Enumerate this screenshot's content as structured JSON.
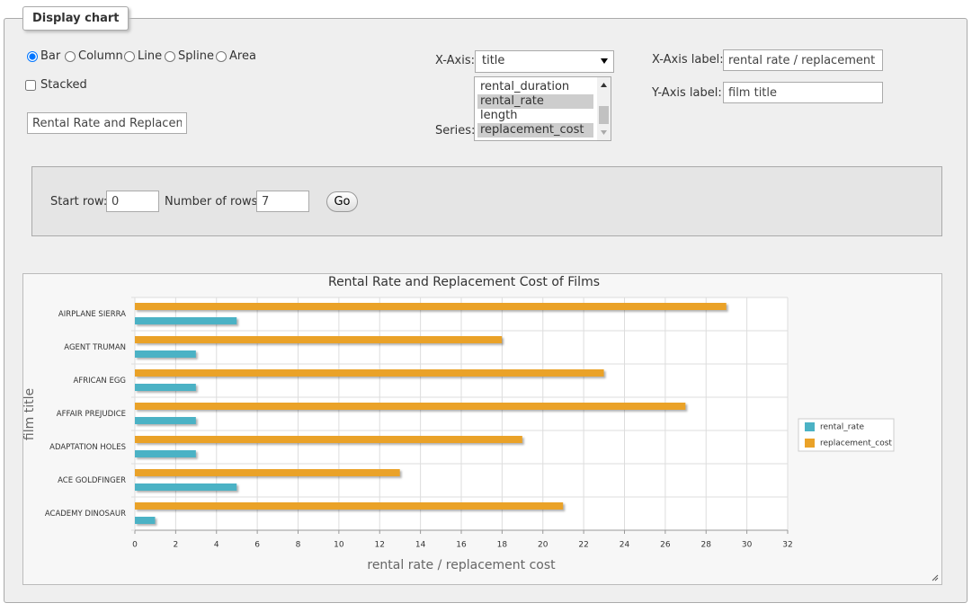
{
  "legend": "Display chart",
  "chart_types": [
    {
      "label": "Bar",
      "checked": true
    },
    {
      "label": "Column",
      "checked": false
    },
    {
      "label": "Line",
      "checked": false
    },
    {
      "label": "Spline",
      "checked": false
    },
    {
      "label": "Area",
      "checked": false
    }
  ],
  "stacked": {
    "label": "Stacked",
    "checked": false
  },
  "title_input": "Rental Rate and Replacement Cost of Films",
  "x_axis": {
    "label": "X-Axis:",
    "value": "title"
  },
  "series_select": {
    "label": "Series:",
    "options": [
      {
        "text": "rental_duration",
        "selected": false
      },
      {
        "text": "rental_rate",
        "selected": true
      },
      {
        "text": "length",
        "selected": false
      },
      {
        "text": "replacement_cost",
        "selected": true
      }
    ]
  },
  "x_axis_label": {
    "label": "X-Axis label:",
    "value": "rental rate / replacement cost"
  },
  "y_axis_label": {
    "label": "Y-Axis label:",
    "value": "film title"
  },
  "start_row": {
    "label": "Start row:",
    "value": 0
  },
  "number_of_rows": {
    "label": "Number of rows:",
    "value": 7
  },
  "go": "Go",
  "chart_data": {
    "type": "bar",
    "orientation": "horizontal",
    "title": "Rental Rate and Replacement Cost of Films",
    "categories": [
      "ACADEMY DINOSAUR",
      "ACE GOLDFINGER",
      "ADAPTATION HOLES",
      "AFFAIR PREJUDICE",
      "AFRICAN EGG",
      "AGENT TRUMAN",
      "AIRPLANE SIERRA"
    ],
    "series": [
      {
        "name": "rental_rate",
        "color": "#4bb2c5",
        "values": [
          0.99,
          4.99,
          2.99,
          2.99,
          2.99,
          2.99,
          4.99
        ]
      },
      {
        "name": "replacement_cost",
        "color": "#eaa228",
        "values": [
          20.99,
          12.99,
          18.99,
          26.99,
          22.99,
          17.99,
          28.99
        ]
      }
    ],
    "xlim": [
      0,
      32
    ],
    "xticks": [
      0,
      2,
      4,
      6,
      8,
      10,
      12,
      14,
      16,
      18,
      20,
      22,
      24,
      26,
      28,
      30,
      32
    ],
    "xlabel": "rental rate / replacement cost",
    "ylabel": "film title",
    "grid": true,
    "legend_position": "right"
  }
}
